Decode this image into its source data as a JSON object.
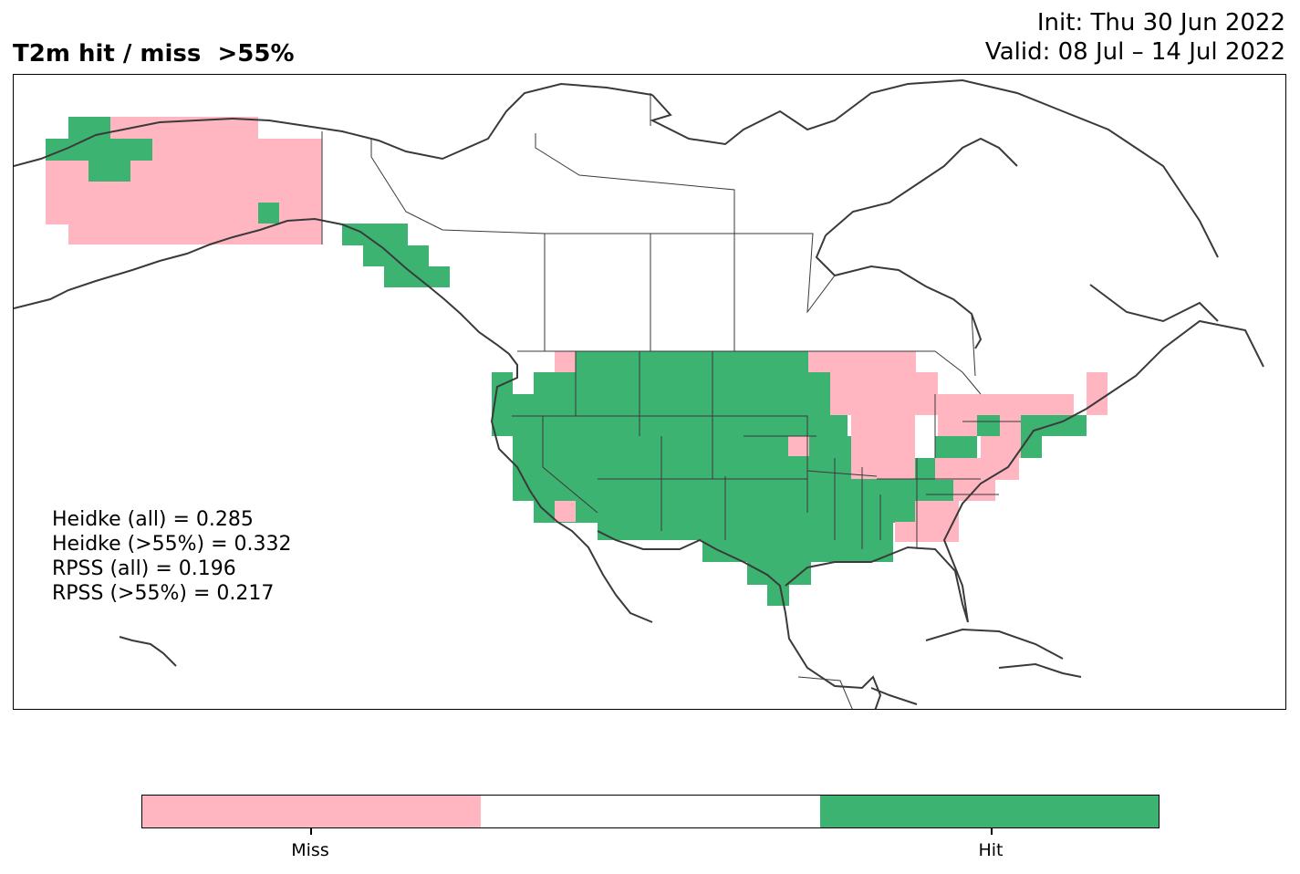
{
  "header": {
    "title": "T2m hit / miss  >55%",
    "init": "Init: Thu 30 Jun 2022",
    "valid": "Valid: 08 Jul – 14 Jul 2022"
  },
  "stats": [
    "Heidke (all) = 0.285",
    "Heidke (>55%) = 0.332",
    "RPSS (all) = 0.196",
    "RPSS (>55%) = 0.217"
  ],
  "colors": {
    "miss": "#ffb6c1",
    "none": "#ffffff",
    "hit": "#3cb371",
    "coast": "#3a3a3a"
  },
  "colorbar": {
    "segments": [
      "miss",
      "none",
      "hit"
    ],
    "ticks": [
      "Miss",
      "Hit"
    ]
  }
}
